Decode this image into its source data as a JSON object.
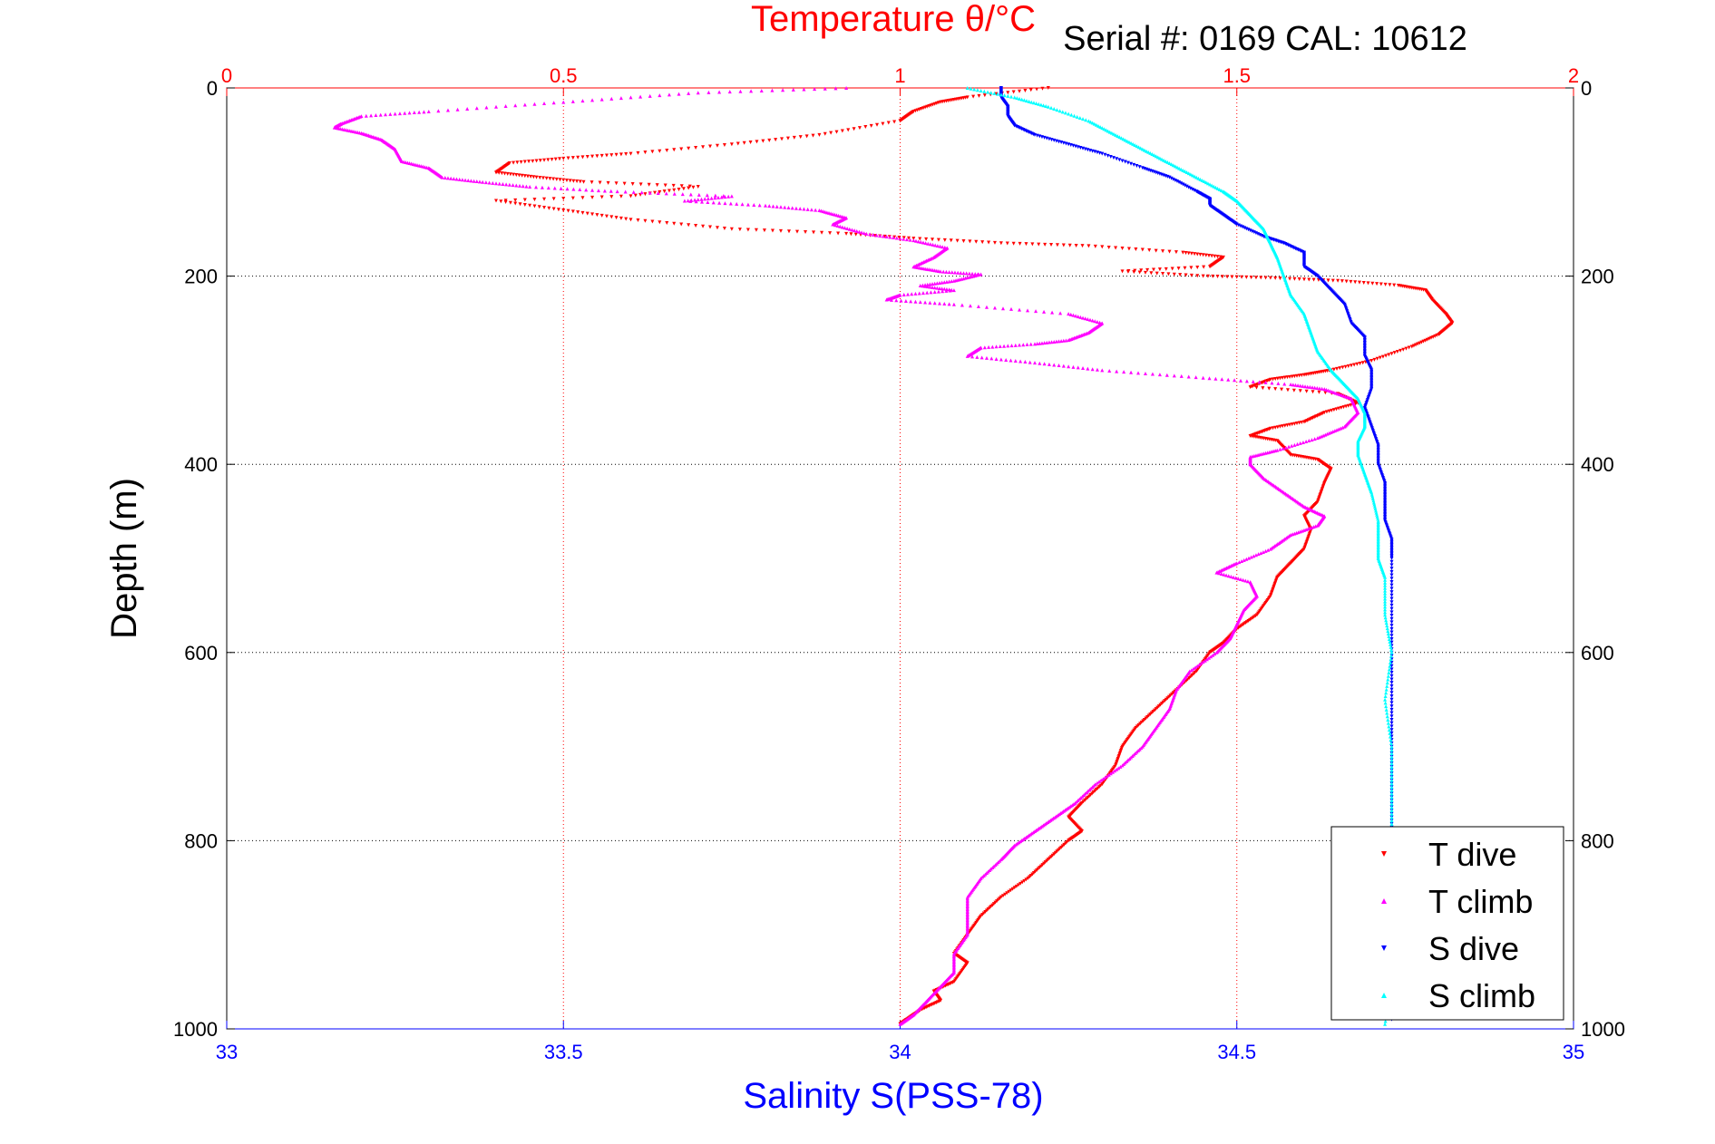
{
  "chart_data": {
    "type": "scatter",
    "serial_text": "Serial #: 0169 CAL: 10612",
    "top_axis": {
      "label": "Temperature θ/°C",
      "range": [
        0,
        2
      ],
      "ticks": [
        0,
        0.5,
        1,
        1.5,
        2
      ],
      "tick_labels": [
        "0",
        "0.5",
        "1",
        "1.5",
        "2"
      ],
      "color": "#ff0000"
    },
    "bottom_axis": {
      "label": "Salinity S(PSS-78)",
      "range": [
        33,
        35
      ],
      "ticks": [
        33,
        33.5,
        34,
        34.5,
        35
      ],
      "tick_labels": [
        "33",
        "33.5",
        "34",
        "34.5",
        "35"
      ],
      "color": "#0000ff"
    },
    "y_axis": {
      "label": "Depth (m)",
      "range": [
        0,
        1000
      ],
      "inverted": true,
      "ticks": [
        0,
        200,
        400,
        600,
        800,
        1000
      ],
      "tick_labels": [
        "0",
        "200",
        "400",
        "600",
        "800",
        "1000"
      ]
    },
    "grid": "dotted",
    "legend_position": "bottom-right",
    "series": [
      {
        "name": "T dive",
        "axis": "temperature",
        "color": "#ff0000",
        "marker": "triangle-down",
        "points": [
          [
            1.22,
            0
          ],
          [
            1.1,
            10
          ],
          [
            1.06,
            15
          ],
          [
            1.02,
            25
          ],
          [
            1.0,
            35
          ],
          [
            0.88,
            50
          ],
          [
            0.75,
            60
          ],
          [
            0.6,
            70
          ],
          [
            0.5,
            75
          ],
          [
            0.42,
            80
          ],
          [
            0.4,
            90
          ],
          [
            0.46,
            95
          ],
          [
            0.53,
            100
          ],
          [
            0.7,
            105
          ],
          [
            0.6,
            115
          ],
          [
            0.4,
            120
          ],
          [
            0.5,
            130
          ],
          [
            0.6,
            140
          ],
          [
            0.75,
            150
          ],
          [
            0.92,
            155
          ],
          [
            1.02,
            160
          ],
          [
            1.15,
            165
          ],
          [
            1.28,
            168
          ],
          [
            1.42,
            175
          ],
          [
            1.48,
            180
          ],
          [
            1.46,
            190
          ],
          [
            1.33,
            195
          ],
          [
            1.45,
            200
          ],
          [
            1.55,
            202
          ],
          [
            1.65,
            205
          ],
          [
            1.74,
            210
          ],
          [
            1.78,
            215
          ],
          [
            1.79,
            225
          ],
          [
            1.81,
            240
          ],
          [
            1.82,
            250
          ],
          [
            1.8,
            262
          ],
          [
            1.76,
            275
          ],
          [
            1.7,
            290
          ],
          [
            1.64,
            300
          ],
          [
            1.6,
            305
          ],
          [
            1.55,
            310
          ],
          [
            1.52,
            318
          ],
          [
            1.65,
            325
          ],
          [
            1.68,
            335
          ],
          [
            1.63,
            345
          ],
          [
            1.6,
            355
          ],
          [
            1.55,
            362
          ],
          [
            1.52,
            370
          ],
          [
            1.56,
            375
          ],
          [
            1.58,
            390
          ],
          [
            1.62,
            395
          ],
          [
            1.64,
            405
          ],
          [
            1.63,
            420
          ],
          [
            1.62,
            440
          ],
          [
            1.6,
            455
          ],
          [
            1.61,
            470
          ],
          [
            1.6,
            490
          ],
          [
            1.58,
            505
          ],
          [
            1.56,
            520
          ],
          [
            1.55,
            540
          ],
          [
            1.53,
            560
          ],
          [
            1.5,
            575
          ],
          [
            1.48,
            590
          ],
          [
            1.46,
            600
          ],
          [
            1.44,
            620
          ],
          [
            1.41,
            640
          ],
          [
            1.38,
            660
          ],
          [
            1.35,
            680
          ],
          [
            1.33,
            700
          ],
          [
            1.32,
            720
          ],
          [
            1.3,
            740
          ],
          [
            1.27,
            760
          ],
          [
            1.25,
            775
          ],
          [
            1.27,
            790
          ],
          [
            1.25,
            800
          ],
          [
            1.22,
            820
          ],
          [
            1.19,
            840
          ],
          [
            1.15,
            860
          ],
          [
            1.12,
            880
          ],
          [
            1.1,
            900
          ],
          [
            1.08,
            920
          ],
          [
            1.1,
            930
          ],
          [
            1.08,
            950
          ],
          [
            1.05,
            960
          ],
          [
            1.06,
            970
          ],
          [
            1.03,
            980
          ],
          [
            1.01,
            990
          ],
          [
            1.0,
            995
          ]
        ]
      },
      {
        "name": "T climb",
        "axis": "temperature",
        "color": "#ff00ff",
        "marker": "triangle-up",
        "points": [
          [
            0.92,
            0
          ],
          [
            0.7,
            5
          ],
          [
            0.5,
            15
          ],
          [
            0.3,
            25
          ],
          [
            0.2,
            30
          ],
          [
            0.17,
            38
          ],
          [
            0.16,
            42
          ],
          [
            0.2,
            48
          ],
          [
            0.23,
            55
          ],
          [
            0.25,
            65
          ],
          [
            0.26,
            78
          ],
          [
            0.3,
            85
          ],
          [
            0.32,
            95
          ],
          [
            0.38,
            100
          ],
          [
            0.45,
            105
          ],
          [
            0.58,
            110
          ],
          [
            0.75,
            115
          ],
          [
            0.68,
            120
          ],
          [
            0.8,
            125
          ],
          [
            0.88,
            130
          ],
          [
            0.92,
            138
          ],
          [
            0.9,
            145
          ],
          [
            0.95,
            155
          ],
          [
            1.02,
            162
          ],
          [
            1.07,
            170
          ],
          [
            1.05,
            180
          ],
          [
            1.02,
            190
          ],
          [
            1.06,
            195
          ],
          [
            1.12,
            198
          ],
          [
            1.08,
            205
          ],
          [
            1.03,
            210
          ],
          [
            1.08,
            215
          ],
          [
            1.0,
            220
          ],
          [
            0.98,
            225
          ],
          [
            1.08,
            230
          ],
          [
            1.25,
            240
          ],
          [
            1.3,
            250
          ],
          [
            1.28,
            260
          ],
          [
            1.25,
            268
          ],
          [
            1.2,
            272
          ],
          [
            1.12,
            276
          ],
          [
            1.1,
            285
          ],
          [
            1.2,
            292
          ],
          [
            1.3,
            300
          ],
          [
            1.45,
            308
          ],
          [
            1.58,
            315
          ],
          [
            1.63,
            320
          ],
          [
            1.67,
            330
          ],
          [
            1.68,
            345
          ],
          [
            1.66,
            360
          ],
          [
            1.62,
            372
          ],
          [
            1.56,
            385
          ],
          [
            1.52,
            392
          ],
          [
            1.52,
            400
          ],
          [
            1.54,
            415
          ],
          [
            1.57,
            430
          ],
          [
            1.6,
            445
          ],
          [
            1.63,
            455
          ],
          [
            1.62,
            465
          ],
          [
            1.58,
            475
          ],
          [
            1.55,
            490
          ],
          [
            1.5,
            505
          ],
          [
            1.47,
            515
          ],
          [
            1.52,
            525
          ],
          [
            1.53,
            540
          ],
          [
            1.51,
            555
          ],
          [
            1.5,
            570
          ],
          [
            1.49,
            585
          ],
          [
            1.47,
            600
          ],
          [
            1.43,
            620
          ],
          [
            1.41,
            640
          ],
          [
            1.4,
            660
          ],
          [
            1.38,
            680
          ],
          [
            1.36,
            700
          ],
          [
            1.33,
            720
          ],
          [
            1.29,
            740
          ],
          [
            1.26,
            760
          ],
          [
            1.23,
            775
          ],
          [
            1.2,
            790
          ],
          [
            1.17,
            805
          ],
          [
            1.15,
            820
          ],
          [
            1.12,
            840
          ],
          [
            1.1,
            860
          ],
          [
            1.1,
            880
          ],
          [
            1.1,
            900
          ],
          [
            1.08,
            920
          ],
          [
            1.08,
            940
          ],
          [
            1.06,
            955
          ],
          [
            1.04,
            970
          ],
          [
            1.02,
            985
          ],
          [
            1.0,
            995
          ]
        ]
      },
      {
        "name": "S dive",
        "axis": "salinity",
        "color": "#0000ff",
        "marker": "triangle-down",
        "points": [
          [
            34.15,
            0
          ],
          [
            34.15,
            10
          ],
          [
            34.16,
            20
          ],
          [
            34.16,
            30
          ],
          [
            34.17,
            40
          ],
          [
            34.2,
            50
          ],
          [
            34.25,
            60
          ],
          [
            34.3,
            70
          ],
          [
            34.36,
            85
          ],
          [
            34.4,
            95
          ],
          [
            34.44,
            110
          ],
          [
            34.46,
            118
          ],
          [
            34.46,
            125
          ],
          [
            34.48,
            135
          ],
          [
            34.5,
            145
          ],
          [
            34.54,
            158
          ],
          [
            34.57,
            165
          ],
          [
            34.6,
            175
          ],
          [
            34.6,
            190
          ],
          [
            34.62,
            200
          ],
          [
            34.64,
            215
          ],
          [
            34.66,
            230
          ],
          [
            34.67,
            250
          ],
          [
            34.69,
            265
          ],
          [
            34.69,
            285
          ],
          [
            34.7,
            300
          ],
          [
            34.7,
            320
          ],
          [
            34.69,
            340
          ],
          [
            34.7,
            360
          ],
          [
            34.71,
            380
          ],
          [
            34.71,
            400
          ],
          [
            34.72,
            420
          ],
          [
            34.72,
            440
          ],
          [
            34.72,
            460
          ],
          [
            34.73,
            480
          ],
          [
            34.73,
            500
          ],
          [
            34.73,
            550
          ],
          [
            34.73,
            600
          ],
          [
            34.73,
            650
          ],
          [
            34.73,
            700
          ],
          [
            34.73,
            750
          ],
          [
            34.73,
            800
          ],
          [
            34.73,
            850
          ],
          [
            34.73,
            900
          ],
          [
            34.73,
            950
          ],
          [
            34.73,
            990
          ]
        ]
      },
      {
        "name": "S climb",
        "axis": "salinity",
        "color": "#00ffff",
        "marker": "triangle-up",
        "points": [
          [
            34.1,
            0
          ],
          [
            34.17,
            10
          ],
          [
            34.22,
            20
          ],
          [
            34.28,
            35
          ],
          [
            34.32,
            50
          ],
          [
            34.36,
            65
          ],
          [
            34.4,
            80
          ],
          [
            34.44,
            95
          ],
          [
            34.48,
            110
          ],
          [
            34.5,
            120
          ],
          [
            34.52,
            135
          ],
          [
            34.54,
            150
          ],
          [
            34.55,
            165
          ],
          [
            34.56,
            180
          ],
          [
            34.57,
            200
          ],
          [
            34.58,
            220
          ],
          [
            34.6,
            240
          ],
          [
            34.61,
            260
          ],
          [
            34.62,
            280
          ],
          [
            34.64,
            300
          ],
          [
            34.66,
            315
          ],
          [
            34.68,
            330
          ],
          [
            34.69,
            345
          ],
          [
            34.69,
            360
          ],
          [
            34.68,
            375
          ],
          [
            34.68,
            390
          ],
          [
            34.69,
            410
          ],
          [
            34.7,
            430
          ],
          [
            34.71,
            460
          ],
          [
            34.71,
            480
          ],
          [
            34.71,
            500
          ],
          [
            34.72,
            520
          ],
          [
            34.72,
            560
          ],
          [
            34.73,
            600
          ],
          [
            34.72,
            650
          ],
          [
            34.73,
            700
          ],
          [
            34.73,
            750
          ],
          [
            34.73,
            800
          ],
          [
            34.73,
            850
          ],
          [
            34.73,
            900
          ],
          [
            34.73,
            950
          ],
          [
            34.72,
            995
          ]
        ]
      }
    ]
  }
}
